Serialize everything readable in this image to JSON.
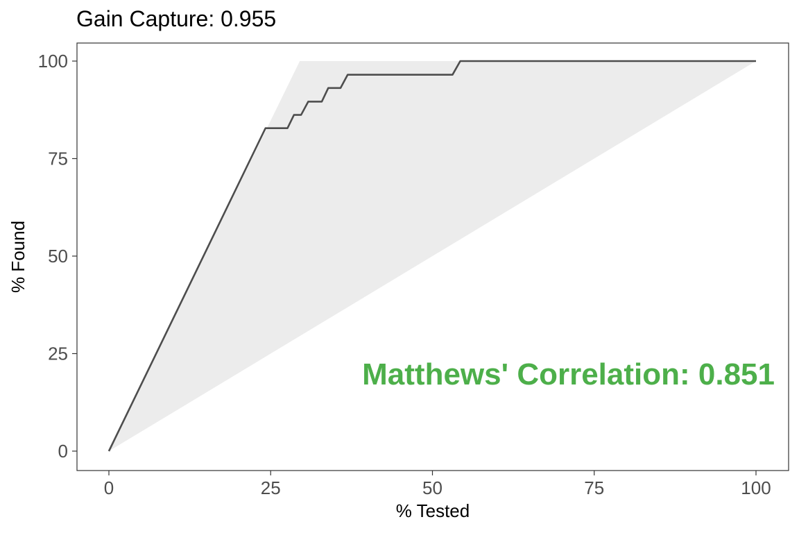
{
  "chart_data": {
    "type": "line",
    "title": "Gain Capture: 0.955",
    "xlabel": "% Tested",
    "ylabel": "% Found",
    "xlim": [
      0,
      100
    ],
    "ylim": [
      0,
      100
    ],
    "x_ticks": [
      "0",
      "25",
      "50",
      "75",
      "100"
    ],
    "y_ticks": [
      "0",
      "25",
      "50",
      "75",
      "100"
    ],
    "grid": false,
    "annotation": {
      "text": "Matthews' Correlation: 0.851",
      "x": 100,
      "y": 20,
      "color": "#4daf4a"
    },
    "bounds_region": {
      "fill": "#ececec",
      "upper": [
        [
          0,
          0
        ],
        [
          29.5,
          100
        ],
        [
          100,
          100
        ]
      ],
      "lower": [
        [
          0,
          0
        ],
        [
          100,
          100
        ]
      ]
    },
    "ideal_line": [
      [
        0,
        0
      ],
      [
        24.2,
        82.8
      ]
    ],
    "series": [
      {
        "color": "#4d4d4d",
        "points": [
          [
            0,
            0
          ],
          [
            24.2,
            82.8
          ],
          [
            27.6,
            82.8
          ],
          [
            28.6,
            86.2
          ],
          [
            29.7,
            86.2
          ],
          [
            30.8,
            89.6
          ],
          [
            32.9,
            89.6
          ],
          [
            33.9,
            93.1
          ],
          [
            35.8,
            93.1
          ],
          [
            36.9,
            96.5
          ],
          [
            53.1,
            96.5
          ],
          [
            54.3,
            100
          ],
          [
            100,
            100
          ]
        ]
      }
    ]
  }
}
